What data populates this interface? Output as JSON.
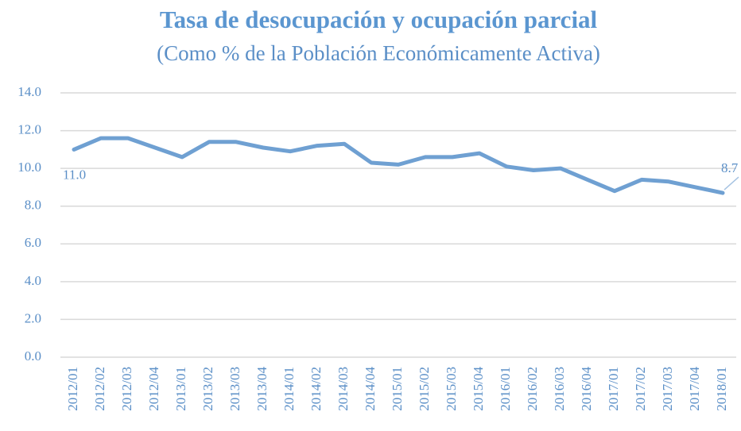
{
  "chart_data": {
    "type": "line",
    "title": "Tasa de desocupación y ocupación parcial",
    "subtitle": "(Como % de la Población Económicamente Activa)",
    "categories": [
      "2012/01",
      "2012/02",
      "2012/03",
      "2012/04",
      "2013/01",
      "2013/02",
      "2013/03",
      "2013/04",
      "2014/01",
      "2014/02",
      "2014/03",
      "2014/04",
      "2015/01",
      "2015/02",
      "2015/03",
      "2015/04",
      "2016/01",
      "2016/02",
      "2016/03",
      "2016/04",
      "2017/01",
      "2017/02",
      "2017/03",
      "2017/04",
      "2018/01"
    ],
    "values": [
      11.0,
      11.6,
      11.6,
      11.1,
      10.6,
      11.4,
      11.4,
      11.1,
      10.9,
      11.2,
      11.3,
      10.3,
      10.2,
      10.6,
      10.6,
      10.8,
      10.1,
      9.9,
      10.0,
      9.4,
      8.8,
      9.4,
      9.3,
      9.0,
      8.7
    ],
    "value_labels": [
      "11.0",
      null,
      null,
      null,
      null,
      null,
      null,
      null,
      null,
      null,
      null,
      null,
      null,
      null,
      null,
      null,
      null,
      null,
      null,
      null,
      null,
      null,
      null,
      null,
      "8.7"
    ],
    "color": "#6fa0d2",
    "ylim": [
      0,
      14
    ],
    "yticks": [
      {
        "value": 0,
        "label": "0.0"
      },
      {
        "value": 2,
        "label": "2.0"
      },
      {
        "value": 4,
        "label": "4.0"
      },
      {
        "value": 6,
        "label": "6.0"
      },
      {
        "value": 8,
        "label": "8.0"
      },
      {
        "value": 10,
        "label": "10.0"
      },
      {
        "value": 12,
        "label": "12.0"
      },
      {
        "value": 14,
        "label": "14.0"
      }
    ],
    "grid": true
  }
}
